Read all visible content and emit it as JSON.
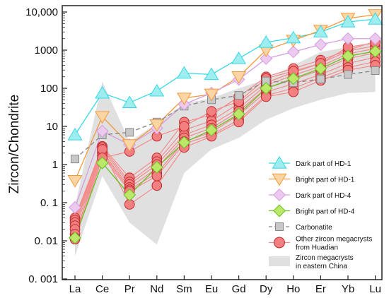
{
  "chart_data": {
    "type": "line",
    "title": "",
    "xlabel": "",
    "ylabel": "Zircon/Chondrite",
    "yscale": "log",
    "ylim": [
      0.001,
      10000
    ],
    "grid": false,
    "legend_position": "bottom-right",
    "categories": [
      "La",
      "Ce",
      "Pr",
      "Nd",
      "Sm",
      "Eu",
      "Gd",
      "Dy",
      "Ho",
      "Er",
      "Yb",
      "Lu"
    ],
    "y_tick_labels": [
      "0. 001",
      "0. 01",
      "0. 1",
      "1",
      "10",
      "100",
      "1000",
      "10,000"
    ],
    "y_tick_values": [
      0.001,
      0.01,
      0.1,
      1,
      10,
      100,
      1000,
      10000
    ],
    "envelope": {
      "name": "Zircon megacrysts in eastern China",
      "color": "#e0e0e0",
      "upper": [
        0.08,
        150,
        4,
        12,
        40,
        55,
        100,
        170,
        400,
        900,
        1200,
        1500
      ],
      "lower": [
        0.004,
        0.5,
        0.03,
        0.008,
        0.6,
        2.5,
        5,
        15,
        30,
        50,
        75,
        80
      ]
    },
    "series": [
      {
        "name": "Dark part of HD-1",
        "marker": "triangle-up",
        "color": "#37d8e8",
        "fill": "#9eeef0",
        "values": [
          6,
          75,
          42,
          85,
          250,
          230,
          600,
          1600,
          2100,
          3000,
          5500,
          6500
        ]
      },
      {
        "name": "Bright part of HD-1",
        "marker": "triangle-down",
        "color": "#f39b3c",
        "fill": "#fbd6a4",
        "values": [
          0.38,
          18,
          3.3,
          11,
          55,
          70,
          200,
          1000,
          1800,
          3300,
          6800,
          8500
        ]
      },
      {
        "name": "Dark part of HD-4",
        "marker": "diamond",
        "color": "#d69de0",
        "fill": "#ecc9ee",
        "values": [
          0.075,
          7.5,
          3.3,
          9,
          38,
          75,
          170,
          600,
          900,
          1400,
          2000,
          2000
        ]
      },
      {
        "name": "Bright part of HD-4",
        "marker": "diamond",
        "color": "#6bbf22",
        "fill": "#bce86a",
        "values": [
          0.012,
          1.1,
          0.16,
          0.85,
          3.8,
          8,
          21,
          100,
          180,
          330,
          700,
          930
        ]
      },
      {
        "name": "Carbonatite",
        "marker": "square",
        "color": "#8a8a8a",
        "fill": "#c8c8c8",
        "dashed": true,
        "values": [
          1.4,
          6,
          7,
          13,
          34,
          50,
          65,
          155,
          140,
          175,
          230,
          290
        ]
      },
      {
        "name": "Other zircon megacrysts from Huadian",
        "marker": "circle",
        "color": "#c0282a",
        "fill": "#f28080",
        "samples": [
          [
            0.04,
            3.0,
            0.45,
            1.5,
            13,
            20,
            60,
            200,
            330,
            550,
            1000,
            1700
          ],
          [
            0.035,
            2.8,
            0.35,
            1.2,
            8,
            14,
            40,
            140,
            260,
            450,
            950,
            1300
          ],
          [
            0.03,
            2.5,
            0.3,
            1.0,
            6,
            11,
            30,
            120,
            220,
            380,
            800,
            1100
          ],
          [
            0.025,
            2.2,
            0.25,
            0.8,
            5,
            9,
            25,
            100,
            170,
            300,
            600,
            850
          ],
          [
            0.02,
            2.0,
            0.22,
            0.6,
            4,
            7,
            20,
            80,
            130,
            230,
            450,
            650
          ],
          [
            0.015,
            1.7,
            0.2,
            0.5,
            3.5,
            6,
            15,
            65,
            100,
            190,
            350,
            500
          ],
          [
            0.012,
            2.5,
            0.09,
            0.28,
            2.8,
            5.5,
            13,
            60,
            80,
            160,
            300,
            400
          ],
          [
            0.011,
            1.5,
            2.2,
            5.5,
            10,
            25,
            45,
            180,
            280,
            450,
            1200,
            1550
          ]
        ]
      }
    ],
    "legend": [
      {
        "label": "Dark part of HD-1",
        "marker": "triangle-up"
      },
      {
        "label": "Bright part of HD-1",
        "marker": "triangle-down"
      },
      {
        "label": "Dark part of HD-4",
        "marker": "diamond"
      },
      {
        "label": "Bright part of HD-4",
        "marker": "diamond"
      },
      {
        "label": "Carbonatite",
        "marker": "square"
      },
      {
        "label": "Other zircon megacrysts",
        "label2": "from Huadian",
        "marker": "circle"
      },
      {
        "label": "Zircon megacrysts",
        "label2": "in eastern China",
        "marker": "area"
      }
    ]
  }
}
